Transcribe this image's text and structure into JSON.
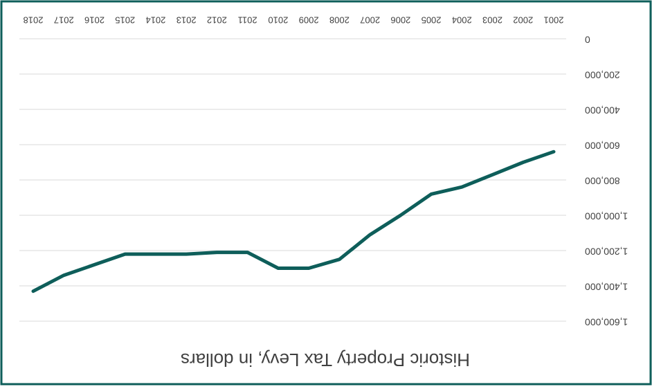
{
  "chart_data": {
    "type": "line",
    "title": "Historic Property Tax Levy, in dollars",
    "categories": [
      "2001",
      "2002",
      "2003",
      "2004",
      "2005",
      "2006",
      "2007",
      "2008",
      "2009",
      "2010",
      "2011",
      "2012",
      "2013",
      "2014",
      "2015",
      "2016",
      "2017",
      "2018"
    ],
    "series": [
      {
        "name": "Property Tax Levy",
        "color": "#0e5e5a",
        "values": [
          640000,
          700000,
          770000,
          840000,
          880000,
          1000000,
          1110000,
          1250000,
          1300000,
          1300000,
          1210000,
          1210000,
          1220000,
          1220000,
          1220000,
          1280000,
          1340000,
          1430000
        ]
      }
    ],
    "ylim": [
      0,
      1600000
    ],
    "yticks": [
      0,
      {
        "value": 200000,
        "label": "200,000"
      },
      {
        "value": 400000,
        "label": "400,000"
      },
      {
        "value": 600000,
        "label": "600,000"
      },
      {
        "value": 800000,
        "label": "800,000"
      },
      {
        "value": 1000000,
        "label": "1,000,000"
      },
      {
        "value": 1200000,
        "label": "1,200,000"
      },
      {
        "value": 1400000,
        "label": "1,400,000"
      },
      {
        "value": 1600000,
        "label": "1,600,000"
      }
    ],
    "grid": true,
    "rotated": true
  }
}
